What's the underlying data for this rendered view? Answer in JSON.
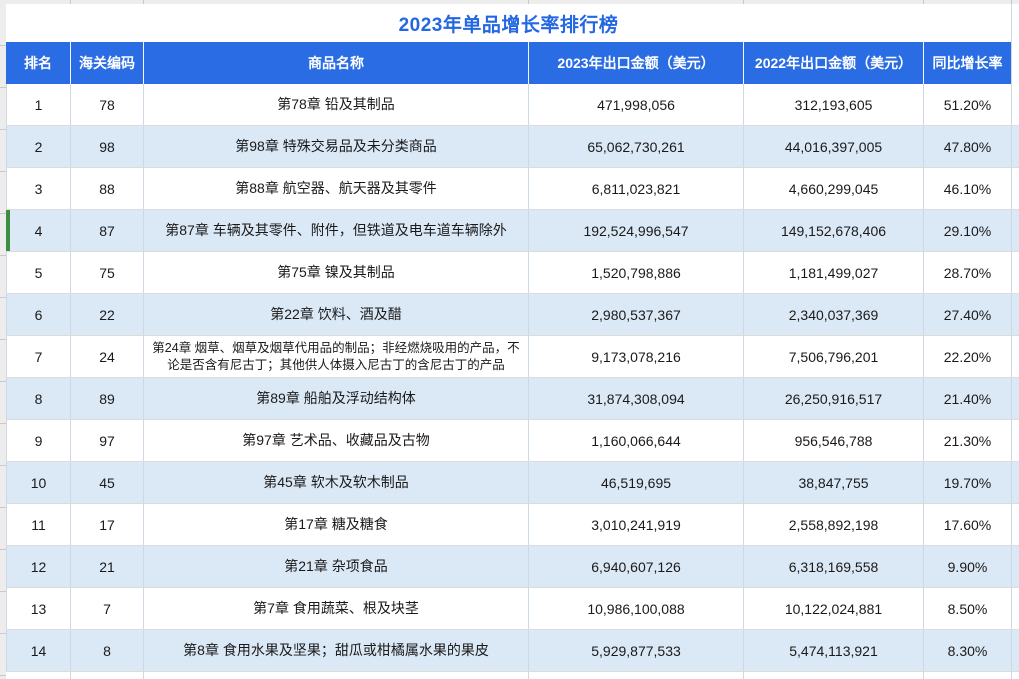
{
  "title": "2023年单品增长率排行榜",
  "table": {
    "columns": [
      "排名",
      "海关编码",
      "商品名称",
      "2023年出口金额（美元）",
      "2022年出口金额（美元）",
      "同比增长率"
    ],
    "selected_rank": "4",
    "rows": [
      {
        "rank": "1",
        "hs_code": "78",
        "product": "第78章 铅及其制品",
        "export_2023": "471,998,056",
        "export_2022": "312,193,605",
        "growth": "51.20%"
      },
      {
        "rank": "2",
        "hs_code": "98",
        "product": "第98章 特殊交易品及未分类商品",
        "export_2023": "65,062,730,261",
        "export_2022": "44,016,397,005",
        "growth": "47.80%"
      },
      {
        "rank": "3",
        "hs_code": "88",
        "product": "第88章 航空器、航天器及其零件",
        "export_2023": "6,811,023,821",
        "export_2022": "4,660,299,045",
        "growth": "46.10%"
      },
      {
        "rank": "4",
        "hs_code": "87",
        "product": "第87章 车辆及其零件、附件，但铁道及电车道车辆除外",
        "export_2023": "192,524,996,547",
        "export_2022": "149,152,678,406",
        "growth": "29.10%"
      },
      {
        "rank": "5",
        "hs_code": "75",
        "product": "第75章 镍及其制品",
        "export_2023": "1,520,798,886",
        "export_2022": "1,181,499,027",
        "growth": "28.70%"
      },
      {
        "rank": "6",
        "hs_code": "22",
        "product": "第22章 饮料、酒及醋",
        "export_2023": "2,980,537,367",
        "export_2022": "2,340,037,369",
        "growth": "27.40%"
      },
      {
        "rank": "7",
        "hs_code": "24",
        "product": "第24章 烟草、烟草及烟草代用品的制品；非经燃烧吸用的产品，不论是否含有尼古丁；其他供人体摄入尼古丁的含尼古丁的产品",
        "export_2023": "9,173,078,216",
        "export_2022": "7,506,796,201",
        "growth": "22.20%"
      },
      {
        "rank": "8",
        "hs_code": "89",
        "product": "第89章 船舶及浮动结构体",
        "export_2023": "31,874,308,094",
        "export_2022": "26,250,916,517",
        "growth": "21.40%"
      },
      {
        "rank": "9",
        "hs_code": "97",
        "product": "第97章 艺术品、收藏品及古物",
        "export_2023": "1,160,066,644",
        "export_2022": "956,546,788",
        "growth": "21.30%"
      },
      {
        "rank": "10",
        "hs_code": "45",
        "product": "第45章 软木及软木制品",
        "export_2023": "46,519,695",
        "export_2022": "38,847,755",
        "growth": "19.70%"
      },
      {
        "rank": "11",
        "hs_code": "17",
        "product": "第17章 糖及糖食",
        "export_2023": "3,010,241,919",
        "export_2022": "2,558,892,198",
        "growth": "17.60%"
      },
      {
        "rank": "12",
        "hs_code": "21",
        "product": "第21章 杂项食品",
        "export_2023": "6,940,607,126",
        "export_2022": "6,318,169,558",
        "growth": "9.90%"
      },
      {
        "rank": "13",
        "hs_code": "7",
        "product": "第7章 食用蔬菜、根及块茎",
        "export_2023": "10,986,100,088",
        "export_2022": "10,122,024,881",
        "growth": "8.50%"
      },
      {
        "rank": "14",
        "hs_code": "8",
        "product": "第8章 食用水果及坚果；甜瓜或柑橘属水果的果皮",
        "export_2023": "5,929,877,533",
        "export_2022": "5,474,113,921",
        "growth": "8.30%"
      }
    ]
  },
  "colors": {
    "header_blue": "#2a6ce4",
    "title_blue": "#2367e2",
    "stripe_blue": "#dbe8f6",
    "selection_green": "#3e8e41"
  }
}
